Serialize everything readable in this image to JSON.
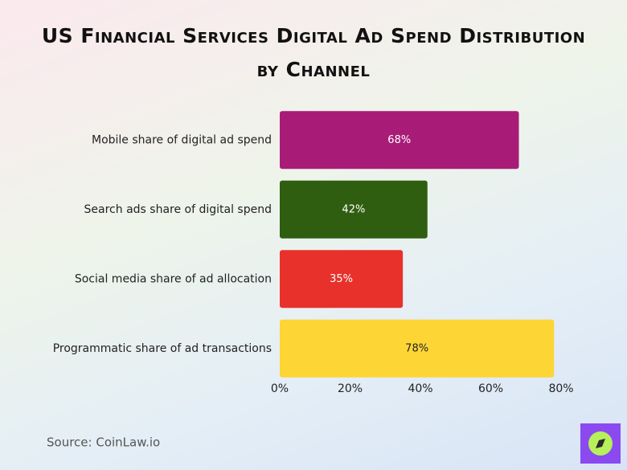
{
  "chart_data": {
    "type": "bar",
    "orientation": "horizontal",
    "title": "US Financial Services Digital Ad Spend Distribution by Channel",
    "categories": [
      "Mobile share of digital ad spend",
      "Search ads share of digital spend",
      "Social media share of ad allocation",
      "Programmatic share of ad transactions"
    ],
    "values": [
      68,
      42,
      35,
      78
    ],
    "value_labels": [
      "68%",
      "42%",
      "35%",
      "78%"
    ],
    "colors": [
      "#a81c78",
      "#2f5e10",
      "#e8312a",
      "#fdd535"
    ],
    "xlim": [
      0,
      80
    ],
    "xticks": [
      {
        "value": 0,
        "label": "0%"
      },
      {
        "value": 20,
        "label": "20%"
      },
      {
        "value": 40,
        "label": "40%"
      },
      {
        "value": 60,
        "label": "60%"
      },
      {
        "value": 80,
        "label": "80%"
      }
    ],
    "source": "Source: CoinLaw.io"
  }
}
